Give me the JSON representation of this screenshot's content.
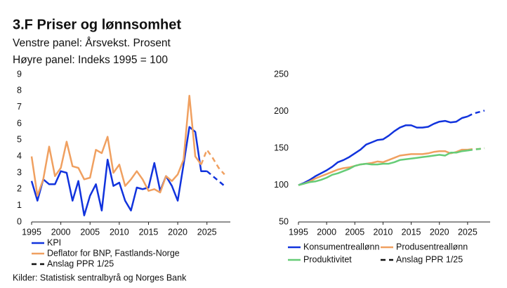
{
  "title": "3.F Priser og lønnsomhet",
  "subtitles": [
    "Venstre panel: Årsvekst. Prosent",
    "Høyre panel: Indeks 1995 = 100"
  ],
  "source": "Kilder: Statistisk sentralbyrå og Norges Bank",
  "chart_data": [
    {
      "type": "line",
      "x": [
        1995,
        1996,
        1997,
        1998,
        1999,
        2000,
        2001,
        2002,
        2003,
        2004,
        2005,
        2006,
        2007,
        2008,
        2009,
        2010,
        2011,
        2012,
        2013,
        2014,
        2015,
        2016,
        2017,
        2018,
        2019,
        2020,
        2021,
        2022,
        2023,
        2024,
        2025,
        2026,
        2027,
        2028
      ],
      "xlim": [
        1995,
        2029
      ],
      "xticks": [
        1995,
        2000,
        2005,
        2010,
        2015,
        2020,
        2025
      ],
      "ylim": [
        0,
        9
      ],
      "yticks": [
        0,
        1,
        2,
        3,
        4,
        5,
        6,
        7,
        8,
        9
      ],
      "legend_columns": 1,
      "forecast_label": "Anslag PPR 1/25",
      "series": [
        {
          "name": "KPI",
          "color": "#1133dd",
          "dash_from": 2025,
          "values": [
            2.5,
            1.3,
            2.6,
            2.3,
            2.3,
            3.1,
            3.0,
            1.3,
            2.5,
            0.4,
            1.6,
            2.3,
            0.7,
            3.8,
            2.2,
            2.4,
            1.3,
            0.7,
            2.1,
            2.0,
            2.1,
            3.6,
            1.9,
            2.8,
            2.2,
            1.3,
            3.5,
            5.8,
            5.5,
            3.1,
            3.1,
            2.8,
            2.5,
            2.2
          ]
        },
        {
          "name": "Deflator for BNP, Fastlands-Norge",
          "color": "#f0a060",
          "dash_from": 2024,
          "values": [
            4.0,
            1.6,
            2.6,
            4.6,
            2.8,
            3.3,
            4.9,
            3.4,
            3.3,
            2.6,
            2.7,
            4.4,
            4.2,
            5.2,
            3.0,
            3.5,
            2.2,
            2.6,
            3.1,
            2.6,
            1.9,
            2.0,
            1.8,
            2.8,
            2.5,
            2.9,
            3.8,
            7.7,
            4.0,
            3.5,
            4.4,
            3.9,
            3.3,
            2.9
          ]
        }
      ]
    },
    {
      "type": "line",
      "x": [
        1995,
        1996,
        1997,
        1998,
        1999,
        2000,
        2001,
        2002,
        2003,
        2004,
        2005,
        2006,
        2007,
        2008,
        2009,
        2010,
        2011,
        2012,
        2013,
        2014,
        2015,
        2016,
        2017,
        2018,
        2019,
        2020,
        2021,
        2022,
        2023,
        2024,
        2025,
        2026,
        2027,
        2028
      ],
      "xlim": [
        1995,
        2029
      ],
      "xticks": [
        1995,
        2000,
        2005,
        2010,
        2015,
        2020,
        2025
      ],
      "ylim": [
        50,
        250
      ],
      "yticks": [
        50,
        100,
        150,
        200,
        250
      ],
      "legend_columns": 2,
      "forecast_label": "Anslag PPR 1/25",
      "series": [
        {
          "name": "Konsumentreallønn",
          "color": "#1133dd",
          "dash_from": 2025,
          "values": [
            100,
            103,
            107,
            112,
            116,
            120,
            125,
            131,
            134,
            138,
            143,
            148,
            155,
            158,
            161,
            162,
            167,
            173,
            178,
            181,
            181,
            178,
            178,
            179,
            183,
            186,
            187,
            185,
            186,
            191,
            193,
            197,
            199,
            201
          ]
        },
        {
          "name": "Produsentreallønn",
          "color": "#f0a060",
          "dash_from": 2025,
          "values": [
            100,
            102,
            105,
            109,
            112,
            115,
            118,
            121,
            123,
            124,
            126,
            128,
            129,
            130,
            132,
            131,
            134,
            137,
            140,
            141,
            142,
            142,
            142,
            143,
            145,
            146,
            146,
            143,
            145,
            148,
            148,
            149,
            149,
            150
          ]
        },
        {
          "name": "Produktivitet",
          "color": "#66cc77",
          "dash_from": 2025,
          "values": [
            100,
            102,
            104,
            105,
            107,
            110,
            114,
            116,
            119,
            122,
            126,
            128,
            129,
            128,
            128,
            129,
            129,
            131,
            134,
            135,
            136,
            137,
            138,
            139,
            140,
            141,
            140,
            144,
            144,
            146,
            147,
            148,
            149,
            150
          ]
        }
      ]
    }
  ]
}
